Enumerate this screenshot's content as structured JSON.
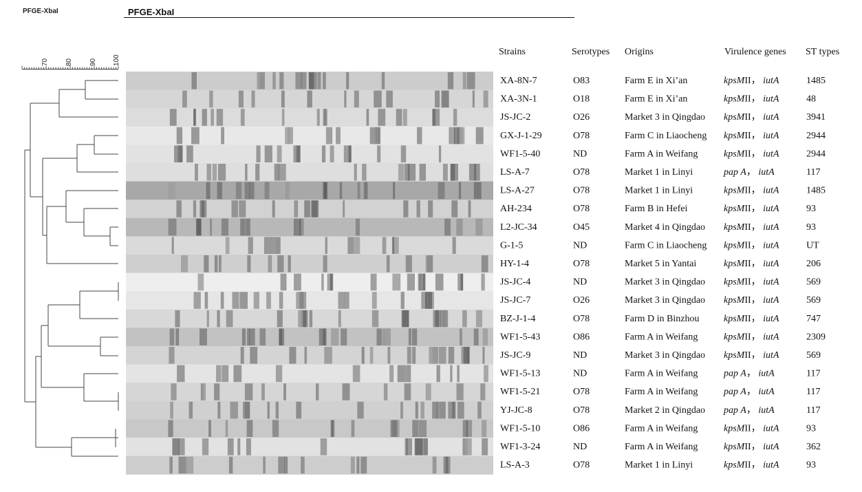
{
  "header": {
    "top_left": "PFGE-XbaI",
    "gel_title": "PFGE-XbaI"
  },
  "scale": {
    "ticks": [
      "70",
      "80",
      "90",
      "100"
    ]
  },
  "columns": [
    "Strains",
    "Serotypes",
    "Origins",
    "Virulence genes",
    "ST types"
  ],
  "rows": [
    {
      "strain": "XA-8N-7",
      "serotype": "O83",
      "origin": "Farm E in Xi’an",
      "g1": "kpsM",
      "g1s": "II",
      "g2": "iutA",
      "st": "1485",
      "shade": "#cccccc"
    },
    {
      "strain": "XA-3N-1",
      "serotype": "O18",
      "origin": "Farm E in Xi’an",
      "g1": "kpsM",
      "g1s": "II",
      "g2": "iutA",
      "st": "48",
      "shade": "#d6d6d6"
    },
    {
      "strain": "JS-JC-2",
      "serotype": "O26",
      "origin": "Market 3 in Qingdao",
      "g1": "kpsM",
      "g1s": "II",
      "g2": "iutA",
      "st": "3941",
      "shade": "#dcdcdc"
    },
    {
      "strain": "GX-J-1-29",
      "serotype": "O78",
      "origin": "Farm C in Liaocheng",
      "g1": "kpsM",
      "g1s": "II",
      "g2": "iutA",
      "st": "2944",
      "shade": "#e8e8e8"
    },
    {
      "strain": "WF1-5-40",
      "serotype": "ND",
      "origin": "Farm A in Weifang",
      "g1": "kpsM",
      "g1s": "II",
      "g2": "iutA",
      "st": "2944",
      "shade": "#e2e2e2"
    },
    {
      "strain": "LS-A-7",
      "serotype": "O78",
      "origin": "Market 1 in Linyi",
      "g1": "pap A",
      "g1s": "",
      "g2": "iutA",
      "st": "117",
      "shade": "#dedede"
    },
    {
      "strain": "LS-A-27",
      "serotype": "O78",
      "origin": "Market 1 in Linyi",
      "g1": "kpsM",
      "g1s": "II",
      "g2": "iutA",
      "st": "1485",
      "shade": "#a8a8a8"
    },
    {
      "strain": "AH-234",
      "serotype": "O78",
      "origin": "Farm B in Hefei",
      "g1": "kpsM",
      "g1s": "II",
      "g2": "iutA",
      "st": "93",
      "shade": "#d2d2d2"
    },
    {
      "strain": "L2-JC-34",
      "serotype": "O45",
      "origin": "Market 4 in Qingdao",
      "g1": "kpsM",
      "g1s": "II",
      "g2": "iutA",
      "st": "93",
      "shade": "#b8b8b8"
    },
    {
      "strain": "G-1-5",
      "serotype": "ND",
      "origin": "Farm C in Liaocheng",
      "g1": "kpsM",
      "g1s": "II",
      "g2": "iutA",
      "st": "UT",
      "shade": "#dadada"
    },
    {
      "strain": "HY-1-4",
      "serotype": "O78",
      "origin": "Market 5 in Yantai",
      "g1": "kpsM",
      "g1s": "II",
      "g2": "iutA",
      "st": "206",
      "shade": "#cfcfcf"
    },
    {
      "strain": "JS-JC-4",
      "serotype": "ND",
      "origin": "Market 3 in Qingdao",
      "g1": "kpsM",
      "g1s": "II",
      "g2": "iutA",
      "st": "569",
      "shade": "#eeeeee"
    },
    {
      "strain": "JS-JC-7",
      "serotype": "O26",
      "origin": "Market 3 in Qingdao",
      "g1": "kpsM",
      "g1s": "II",
      "g2": "iutA",
      "st": "569",
      "shade": "#e6e6e6"
    },
    {
      "strain": "BZ-J-1-4",
      "serotype": "O78",
      "origin": "Farm D in Binzhou",
      "g1": "kpsM",
      "g1s": "II",
      "g2": "iutA",
      "st": "747",
      "shade": "#d8d8d8"
    },
    {
      "strain": "WF1-5-43",
      "serotype": "O86",
      "origin": "Farm A in Weifang",
      "g1": "kpsM",
      "g1s": "II",
      "g2": "iutA",
      "st": "2309",
      "shade": "#c2c2c2"
    },
    {
      "strain": "JS-JC-9",
      "serotype": "ND",
      "origin": "Market 3 in Qingdao",
      "g1": "kpsM",
      "g1s": "II",
      "g2": "iutA",
      "st": "569",
      "shade": "#d4d4d4"
    },
    {
      "strain": "WF1-5-13",
      "serotype": "ND",
      "origin": "Farm A in Weifang",
      "g1": "pap A",
      "g1s": "",
      "g2": "iutA",
      "st": "117",
      "shade": "#e4e4e4"
    },
    {
      "strain": "WF1-5-21",
      "serotype": "O78",
      "origin": "Farm A in Weifang",
      "g1": "pap A",
      "g1s": "",
      "g2": "iutA",
      "st": "117",
      "shade": "#d6d6d6"
    },
    {
      "strain": "YJ-JC-8",
      "serotype": "O78",
      "origin": "Market 2 in Qingdao",
      "g1": "pap A",
      "g1s": "",
      "g2": "iutA",
      "st": "117",
      "shade": "#d0d0d0"
    },
    {
      "strain": "WF1-5-10",
      "serotype": "O86",
      "origin": "Farm A in Weifang",
      "g1": "kpsM",
      "g1s": "II",
      "g2": "iutA",
      "st": "93",
      "shade": "#c8c8c8"
    },
    {
      "strain": "WF1-3-24",
      "serotype": "ND",
      "origin": "Farm A in Weifang",
      "g1": "kpsM",
      "g1s": "II",
      "g2": "iutA",
      "st": "362",
      "shade": "#e2e2e2"
    },
    {
      "strain": "LS-A-3",
      "serotype": "O78",
      "origin": "Market 1 in Linyi",
      "g1": "kpsM",
      "g1s": "II",
      "g2": "iutA",
      "st": "93",
      "shade": "#cdcdcd"
    }
  ]
}
